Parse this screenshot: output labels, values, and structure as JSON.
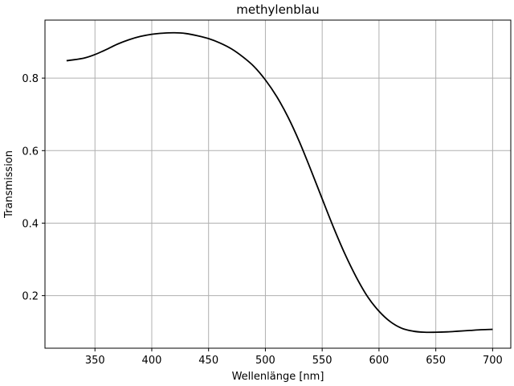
{
  "chart_data": {
    "type": "line",
    "title": "methylenblau",
    "xlabel": "Wellenlänge [nm]",
    "ylabel": "Transmission",
    "xlim": [
      306,
      716
    ],
    "ylim": [
      0.055,
      0.96
    ],
    "xticks": [
      350,
      400,
      450,
      500,
      550,
      600,
      650,
      700
    ],
    "yticks": [
      0.2,
      0.4,
      0.6,
      0.8
    ],
    "grid": true,
    "series": [
      {
        "color": "#000000",
        "x": [
          325,
          340,
          350,
          360,
          370,
          380,
          390,
          400,
          410,
          420,
          430,
          440,
          450,
          460,
          470,
          480,
          490,
          500,
          510,
          520,
          530,
          540,
          550,
          560,
          570,
          580,
          590,
          600,
          610,
          620,
          630,
          640,
          650,
          660,
          670,
          680,
          690,
          700
        ],
        "y": [
          0.848,
          0.855,
          0.865,
          0.879,
          0.894,
          0.906,
          0.915,
          0.921,
          0.924,
          0.925,
          0.923,
          0.917,
          0.909,
          0.897,
          0.881,
          0.859,
          0.832,
          0.795,
          0.749,
          0.692,
          0.624,
          0.547,
          0.467,
          0.388,
          0.315,
          0.251,
          0.197,
          0.157,
          0.128,
          0.11,
          0.102,
          0.099,
          0.099,
          0.1,
          0.102,
          0.104,
          0.106,
          0.107
        ]
      }
    ]
  }
}
